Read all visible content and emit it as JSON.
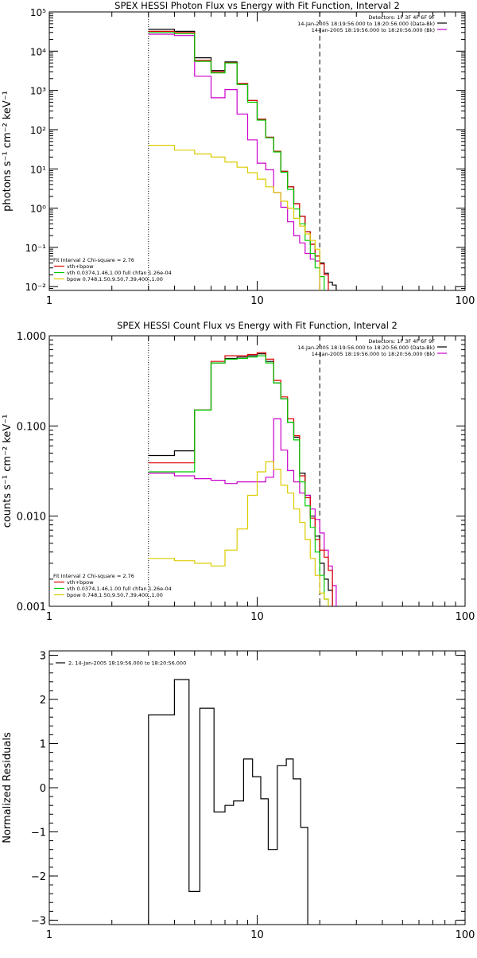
{
  "colors": {
    "data_minus_bk": "#000000",
    "bk": "#cc00cc",
    "total_fit": "#dd0000",
    "vth": "#00cc00",
    "bpow": "#ddcc00"
  },
  "chart_data": [
    {
      "type": "line",
      "step": true,
      "xscale": "log",
      "yscale": "log",
      "title": "SPEX HESSI Photon Flux vs Energy with Fit Function, Interval 2",
      "xlabel": "",
      "ylabel": "photons s⁻¹ cm⁻² keV⁻¹",
      "xlim": [
        1,
        100
      ],
      "ylim": [
        0.008,
        100000
      ],
      "xticks": [
        1,
        10,
        100
      ],
      "xticklabels": [
        "1",
        "10",
        "100"
      ],
      "yticks": [
        0.01,
        0.1,
        1,
        10,
        100,
        1000,
        10000,
        100000
      ],
      "yticklabels": [
        "10⁻²",
        "10⁻¹",
        "10⁰",
        "10¹",
        "10²",
        "10³",
        "10⁴",
        "10⁵"
      ],
      "vlines": [
        {
          "x": 3,
          "style": "dotted"
        },
        {
          "x": 20,
          "style": "dashed"
        }
      ],
      "header_lines": [
        "Detectors: 1F 3F 4F 6F 9F",
        "14-Jan-2005 18:19:56.000 to 18:20:56.000 (Data-Bk)",
        "14-Jan-2005 18:19:56.000 to 18:20:56.000 (Bk)"
      ],
      "fit_lines": [
        "Fit Interval 2   Chi-square = 2.76",
        "vth+bpow",
        "vth 0.0374,1.46,1.00  full chfan 1.26e-04",
        "bpow 0.748,1.50,9.50,7.39,400.,1.00"
      ],
      "edges": [
        3,
        4,
        5,
        6,
        7,
        8,
        9,
        10,
        11,
        12,
        13,
        14,
        15,
        16,
        17,
        18,
        19,
        20,
        21,
        22,
        23,
        24,
        25
      ],
      "series": [
        {
          "name": "Data-Bk",
          "color_key": "data_minus_bk",
          "values": [
            36000,
            32000,
            6800,
            3200,
            5300,
            1500,
            550,
            185,
            64,
            28,
            8.7,
            3.5,
            1.3,
            0.62,
            0.25,
            0.12,
            0.06,
            0.04,
            0.022,
            0.013,
            0.011,
            null
          ]
        },
        {
          "name": "Bk",
          "color_key": "bk",
          "values": [
            27000,
            25000,
            2300,
            650,
            1050,
            250,
            55,
            14,
            9.5,
            2.5,
            1.05,
            0.45,
            0.2,
            0.13,
            0.07,
            0.05,
            0.045,
            null,
            null,
            null,
            null,
            null
          ]
        },
        {
          "name": "vth+bpow",
          "color_key": "total_fit",
          "values": [
            32000,
            30000,
            5800,
            3000,
            5100,
            1500,
            550,
            185,
            64,
            28,
            8.7,
            3.5,
            1.3,
            0.62,
            0.25,
            0.12,
            0.06,
            0.038,
            0.02,
            null,
            null,
            null
          ]
        },
        {
          "name": "vth",
          "color_key": "vth",
          "values": [
            30000,
            28000,
            5500,
            2800,
            5000,
            1400,
            500,
            175,
            62,
            27,
            8.2,
            3.0,
            0.95,
            0.4,
            0.15,
            0.07,
            0.03,
            0.018,
            null,
            null,
            null,
            null
          ]
        },
        {
          "name": "bpow",
          "color_key": "bpow",
          "values": [
            40,
            30,
            24,
            20,
            15,
            11,
            8,
            5.5,
            3.5,
            2.5,
            1.5,
            1.0,
            0.55,
            0.35,
            0.22,
            0.15,
            0.09,
            null,
            null,
            null,
            null,
            null
          ]
        }
      ]
    },
    {
      "type": "line",
      "step": true,
      "xscale": "log",
      "yscale": "log",
      "title": "SPEX HESSI Count Flux vs Energy with Fit Function, Interval 2",
      "xlabel": "",
      "ylabel": "counts s⁻¹ cm⁻² keV⁻¹",
      "xlim": [
        1,
        100
      ],
      "ylim": [
        0.001,
        1.0
      ],
      "xticks": [
        1,
        10,
        100
      ],
      "xticklabels": [
        "1",
        "10",
        "100"
      ],
      "yticks": [
        0.001,
        0.01,
        0.1,
        1.0
      ],
      "yticklabels": [
        "0.001",
        "0.010",
        "0.100",
        "1.000"
      ],
      "vlines": [
        {
          "x": 3,
          "style": "dotted"
        },
        {
          "x": 20,
          "style": "dashed"
        }
      ],
      "header_lines": [
        "Detectors: 1F 3F 4F 6F 9F",
        "14-Jan-2005 18:19:56.000 to 18:20:56.000 (Data-Bk)",
        "14-Jan-2005 18:19:56.000 to 18:20:56.000 (Bk)"
      ],
      "fit_lines": [
        "Fit Interval 2   Chi-square = 2.76",
        "vth+bpow",
        "vth 0.0374,1.46,1.00  full chfan 1.26e-04",
        "bpow 0.748,1.50,9.50,7.39,400.,1.00"
      ],
      "edges": [
        3,
        4,
        5,
        6,
        7,
        8,
        9,
        10,
        11,
        12,
        13,
        14,
        15,
        16,
        17,
        18,
        19,
        20,
        21,
        22,
        23,
        24,
        25
      ],
      "series": [
        {
          "name": "Data-Bk",
          "color_key": "data_minus_bk",
          "values": [
            0.047,
            0.053,
            0.15,
            0.5,
            0.56,
            0.58,
            0.6,
            0.63,
            0.52,
            0.3,
            0.2,
            0.11,
            0.075,
            0.03,
            0.017,
            0.01,
            0.006,
            0.003,
            0.002,
            0.0015,
            null,
            null
          ]
        },
        {
          "name": "Bk",
          "color_key": "bk",
          "values": [
            0.03,
            0.028,
            0.026,
            0.025,
            0.023,
            0.024,
            0.024,
            0.024,
            0.027,
            0.12,
            0.054,
            0.032,
            0.024,
            0.018,
            0.017,
            0.012,
            0.0092,
            0.0065,
            0.0042,
            0.0028,
            0.0017,
            null
          ]
        },
        {
          "name": "vth+bpow",
          "color_key": "total_fit",
          "values": [
            0.039,
            0.039,
            0.15,
            0.52,
            0.6,
            0.6,
            0.62,
            0.65,
            0.55,
            0.32,
            0.21,
            0.12,
            0.078,
            0.028,
            0.016,
            0.0095,
            0.0055,
            0.0042,
            0.0035,
            0.0025,
            null,
            null
          ]
        },
        {
          "name": "vth",
          "color_key": "vth",
          "values": [
            0.031,
            0.031,
            0.15,
            0.5,
            0.55,
            0.56,
            0.58,
            0.6,
            0.5,
            0.3,
            0.2,
            0.11,
            0.07,
            0.024,
            0.013,
            0.0075,
            0.004,
            0.0022,
            0.0012,
            null,
            null,
            null
          ]
        },
        {
          "name": "bpow",
          "color_key": "bpow",
          "values": [
            0.0034,
            0.0032,
            0.003,
            0.0028,
            0.0042,
            0.0072,
            0.017,
            0.031,
            0.04,
            0.033,
            0.022,
            0.018,
            0.012,
            0.0085,
            0.0055,
            0.0034,
            0.0022,
            0.0014,
            0.0012,
            null,
            null,
            null
          ]
        }
      ]
    },
    {
      "type": "line",
      "step": true,
      "xscale": "log",
      "yscale": "linear",
      "title": "",
      "xlabel": "",
      "ylabel": "Normalized Residuals",
      "xlim": [
        1,
        100
      ],
      "ylim": [
        -3.1,
        3.1
      ],
      "xticks": [
        1,
        10,
        100
      ],
      "xticklabels": [
        "1",
        "10",
        "100"
      ],
      "yticks": [
        -3,
        -2,
        -1,
        0,
        1,
        2,
        3
      ],
      "yticklabels": [
        "−3",
        "−2",
        "−1",
        "0",
        "1",
        "2",
        "3"
      ],
      "legend": "2, 14-Jan-2005 18:19:56.000 to 18:20:56.000",
      "edges": [
        3,
        4,
        4.7,
        5.3,
        6.2,
        7,
        7.7,
        8.6,
        9.5,
        10.4,
        11.3,
        12.5,
        13.8,
        14.9,
        16.2,
        17.5,
        19,
        20
      ],
      "series": [
        {
          "name": "",
          "color_key": "data_minus_bk",
          "values": [
            1.65,
            2.45,
            -2.35,
            1.8,
            -0.55,
            -0.4,
            -0.3,
            0.65,
            0.25,
            -0.25,
            -1.4,
            0.5,
            0.65,
            0.2,
            -0.9,
            null,
            null
          ]
        }
      ]
    }
  ]
}
